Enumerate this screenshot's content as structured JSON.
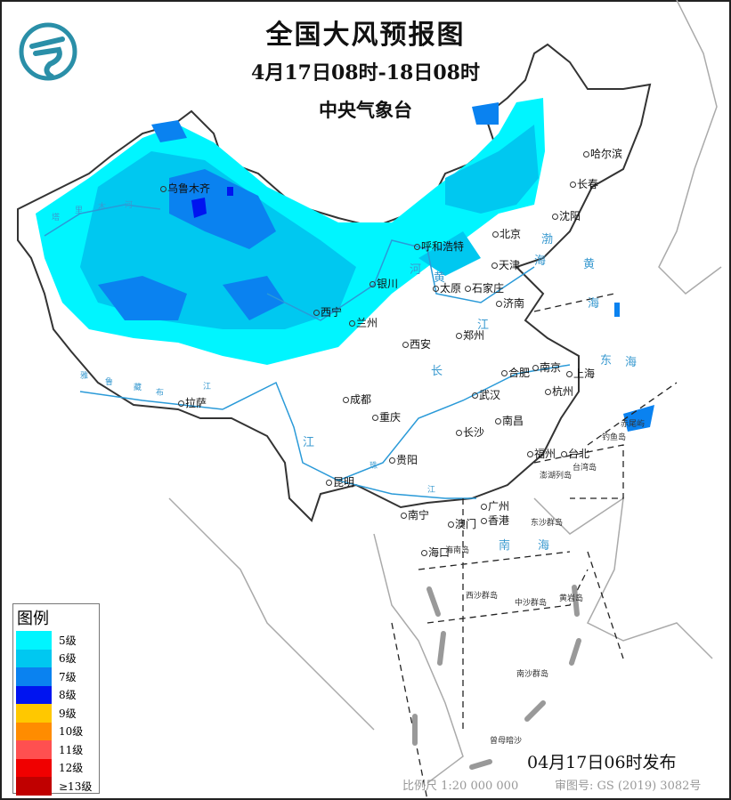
{
  "header": {
    "title": "全国大风预报图",
    "period": "4月17日08时-18日08时",
    "issuer": "中央气象台",
    "logo": "cma-logo"
  },
  "legend": {
    "title": "图例",
    "items": [
      {
        "label": "5级",
        "color": "#00f5ff"
      },
      {
        "label": "6级",
        "color": "#00c8f0"
      },
      {
        "label": "7级",
        "color": "#0a82f0"
      },
      {
        "label": "8级",
        "color": "#0014f0"
      },
      {
        "label": "9级",
        "color": "#ffc800"
      },
      {
        "label": "10级",
        "color": "#ff8c00"
      },
      {
        "label": "11级",
        "color": "#ff5050"
      },
      {
        "label": "12级",
        "color": "#f00000"
      },
      {
        "label": "≥13级",
        "color": "#c00000"
      }
    ]
  },
  "cities": [
    "乌鲁木齐",
    "北京",
    "天津",
    "呼和浩特",
    "太原",
    "石家庄",
    "济南",
    "银川",
    "西宁",
    "兰州",
    "西安",
    "郑州",
    "合肥",
    "南京",
    "上海",
    "杭州",
    "武汉",
    "成都",
    "重庆",
    "拉萨",
    "长沙",
    "南昌",
    "贵阳",
    "昆明",
    "福州",
    "台北",
    "南宁",
    "广州",
    "澳门",
    "香港",
    "海口",
    "哈尔滨",
    "长春",
    "沈阳"
  ],
  "islands": [
    "台湾岛",
    "海南岛",
    "钓鱼岛",
    "赤尾屿",
    "澎湖列岛",
    "东沙群岛",
    "西沙群岛",
    "中沙群岛",
    "黄岩岛",
    "南沙群岛",
    "曾母暗沙"
  ],
  "waters": [
    "渤",
    "海",
    "黄",
    "海",
    "东",
    "海",
    "南",
    "海",
    "长",
    "江",
    "黄",
    "河",
    "江",
    "雅",
    "鲁",
    "藏",
    "布",
    "江",
    "塔",
    "里",
    "木",
    "河",
    "珠",
    "江"
  ],
  "footer": {
    "issued": "04月17日06时发布",
    "scale": "比例尺 1:20 000 000",
    "approval": "审图号: GS (2019) 3082号"
  }
}
